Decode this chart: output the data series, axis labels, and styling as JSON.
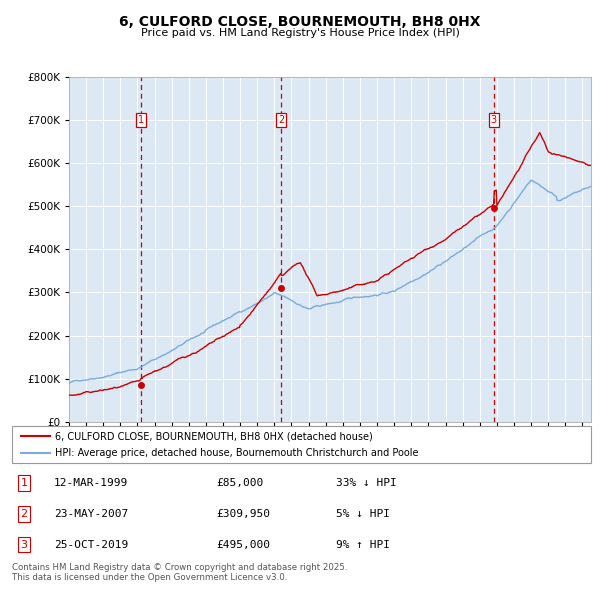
{
  "title_line1": "6, CULFORD CLOSE, BOURNEMOUTH, BH8 0HX",
  "title_line2": "Price paid vs. HM Land Registry's House Price Index (HPI)",
  "bg_color": "#dce9f5",
  "plot_bg_color": "#dce9f5",
  "red_line_color": "#cc0000",
  "blue_line_color": "#7aabdb",
  "sale_marker_color": "#cc0000",
  "dashed_line_color": "#cc0000",
  "sales": [
    {
      "date": 1999.19,
      "price": 85000,
      "label": "1",
      "note": "12-MAR-1999",
      "pct": "33%",
      "dir": "↓"
    },
    {
      "date": 2007.39,
      "price": 309950,
      "label": "2",
      "note": "23-MAY-2007",
      "pct": "5%",
      "dir": "↓"
    },
    {
      "date": 2019.82,
      "price": 495000,
      "label": "3",
      "note": "25-OCT-2019",
      "pct": "9%",
      "dir": "↑"
    }
  ],
  "ylim": [
    0,
    800000
  ],
  "xlim": [
    1995,
    2025.5
  ],
  "yticks": [
    0,
    100000,
    200000,
    300000,
    400000,
    500000,
    600000,
    700000,
    800000
  ],
  "legend_line1": "6, CULFORD CLOSE, BOURNEMOUTH, BH8 0HX (detached house)",
  "legend_line2": "HPI: Average price, detached house, Bournemouth Christchurch and Poole",
  "footer": "Contains HM Land Registry data © Crown copyright and database right 2025.\nThis data is licensed under the Open Government Licence v3.0.",
  "table_rows": [
    [
      "1",
      "12-MAR-1999",
      "£85,000",
      "33% ↓ HPI"
    ],
    [
      "2",
      "23-MAY-2007",
      "£309,950",
      "5% ↓ HPI"
    ],
    [
      "3",
      "25-OCT-2019",
      "£495,000",
      "9% ↑ HPI"
    ]
  ]
}
